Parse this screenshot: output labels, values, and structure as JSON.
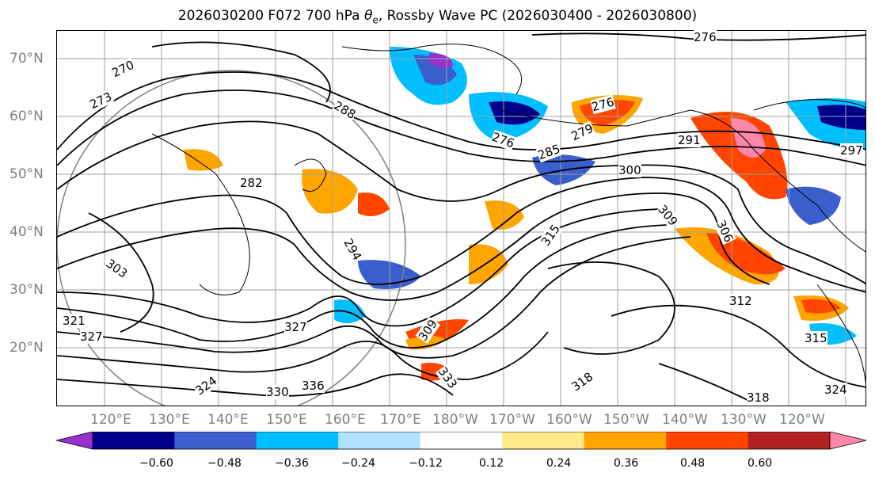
{
  "title": "2026030200 F072 700 hPa",
  "title_symbol": "θ",
  "title_sub": "e",
  "title_rest": ", Rossby Wave PC (2026030400 - 2026030800)",
  "lat_labels": [
    "70°N",
    "60°N",
    "50°N",
    "40°N",
    "30°N",
    "20°N"
  ],
  "lon_labels": [
    "120°E",
    "130°E",
    "140°E",
    "150°E",
    "160°E",
    "170°E",
    "180°W",
    "170°W",
    "160°W",
    "150°W",
    "140°W",
    "130°W",
    "120°W"
  ],
  "contour_labels": [
    "276",
    "270",
    "273",
    "276",
    "279",
    "285",
    "282",
    "288",
    "291",
    "297",
    "300",
    "303",
    "306",
    "309",
    "312",
    "315",
    "318",
    "321",
    "324",
    "327",
    "330",
    "333",
    "336",
    "294"
  ],
  "colorbar": {
    "ticks": [
      "−0.60",
      "−0.48",
      "−0.36",
      "−0.24",
      "−0.12",
      "0.12",
      "0.24",
      "0.36",
      "0.48",
      "0.60"
    ],
    "colors": [
      "#9932cc",
      "#00008b",
      "#3a5fcd",
      "#00bfff",
      "#b0e2ff",
      "#ffffff",
      "#ffe98a",
      "#ffa500",
      "#ff4500",
      "#b22222",
      "#ff88aa"
    ]
  }
}
